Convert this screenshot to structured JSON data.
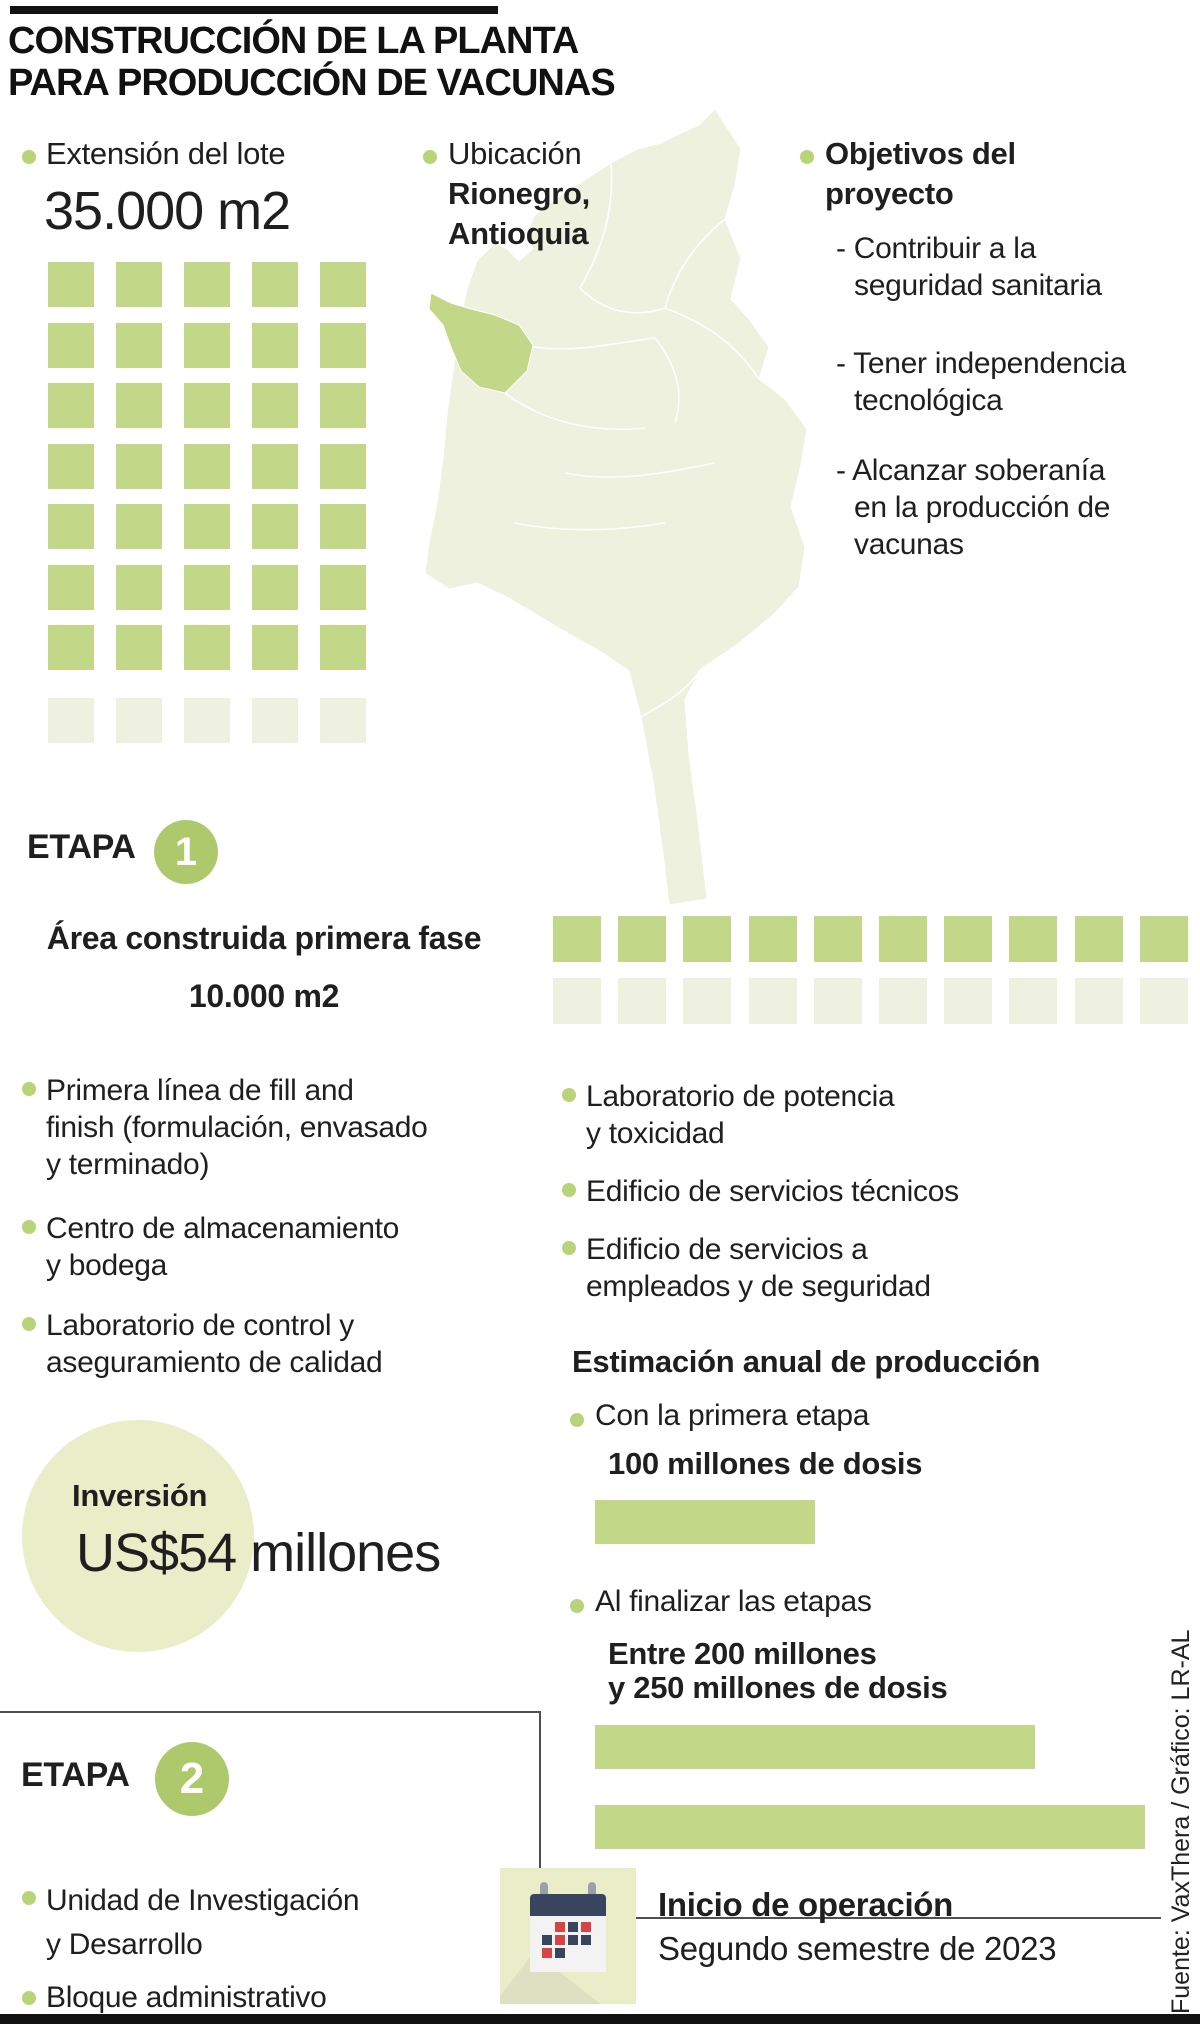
{
  "colors": {
    "green": "#c3d788",
    "green_badge": "#adc96c",
    "green_faded": "#eef1e0",
    "pale_circle": "#e9eec9",
    "map_fill": "#edf1de",
    "bullet": "#b9d478",
    "calendar_red": "#d84444",
    "calendar_navy": "#39455e",
    "text": "#1f1f1f"
  },
  "header": {
    "title_line1": "CONSTRUCCIÓN DE LA PLANTA",
    "title_line2": "PARA PRODUCCIÓN DE VACUNAS"
  },
  "lot": {
    "label": "Extensión del lote",
    "value": "35.000 m2"
  },
  "location": {
    "label": "Ubicación",
    "lines": [
      "Rionegro,",
      "Antioquia"
    ],
    "highlighted_region": "Antioquia"
  },
  "objectives": {
    "title_lines": [
      "Objetivos del",
      "proyecto"
    ],
    "items": [
      [
        "- Contribuir a la",
        "seguridad sanitaria"
      ],
      [
        "- Tener independencia",
        "tecnológica"
      ],
      [
        "- Alcanzar soberanía",
        "en la producción de",
        "vacunas"
      ]
    ]
  },
  "etapa1": {
    "label": "ETAPA",
    "number": "1",
    "area_label": "Área construida primera fase",
    "area_value": "10.000 m2",
    "features_left": [
      [
        "Primera línea de fill and",
        "finish (formulación, envasado",
        "y terminado)"
      ],
      [
        "Centro de almacenamiento",
        "y bodega"
      ],
      [
        "Laboratorio de control y",
        "aseguramiento de calidad"
      ]
    ],
    "features_right": [
      [
        "Laboratorio de potencia",
        "y toxicidad"
      ],
      [
        "Edificio de servicios técnicos"
      ],
      [
        "Edificio de servicios a",
        "empleados y de seguridad"
      ]
    ]
  },
  "production": {
    "title": "Estimación anual de producción",
    "first_label": "Con la primera etapa",
    "first_value": "100 millones de dosis",
    "final_label": "Al finalizar las etapas",
    "final_value_lines": [
      "Entre 200 millones",
      "y 250 millones de dosis"
    ]
  },
  "investment": {
    "label": "Inversión",
    "amount": "US$54",
    "unit": " millones"
  },
  "etapa2": {
    "label": "ETAPA",
    "number": "2",
    "items": [
      [
        "Unidad de Investigación",
        "y Desarrollo"
      ],
      [
        "Bloque administrativo"
      ]
    ]
  },
  "operation": {
    "title": "Inicio de operación",
    "subtitle": "Segundo semestre de 2023",
    "icon": "calendar-icon"
  },
  "source": {
    "text": "Fuente: VaxThera / Gráfico: LR-AL"
  },
  "chart_data": [
    {
      "type": "pictogram",
      "title": "Extensión del lote",
      "value_label": "35.000 m2",
      "columns": 5,
      "rows_filled": 7,
      "rows_faded": 1,
      "squares_filled": 35,
      "squares_faded": 5,
      "note": "each filled square ≈ 1.000 m2"
    },
    {
      "type": "pictogram",
      "title": "Área construida primera fase",
      "value_label": "10.000 m2",
      "squares_filled": 10,
      "squares_faded": 10,
      "note": "each filled square ≈ 1.000 m2"
    },
    {
      "type": "bar",
      "title": "Estimación anual de producción",
      "categories": [
        "Con la primera etapa",
        "Al finalizar las etapas (mínimo)",
        "Al finalizar las etapas (máximo)"
      ],
      "values": [
        100,
        200,
        250
      ],
      "unit": "millones de dosis",
      "orientation": "horizontal",
      "xlim": [
        0,
        250
      ]
    }
  ]
}
